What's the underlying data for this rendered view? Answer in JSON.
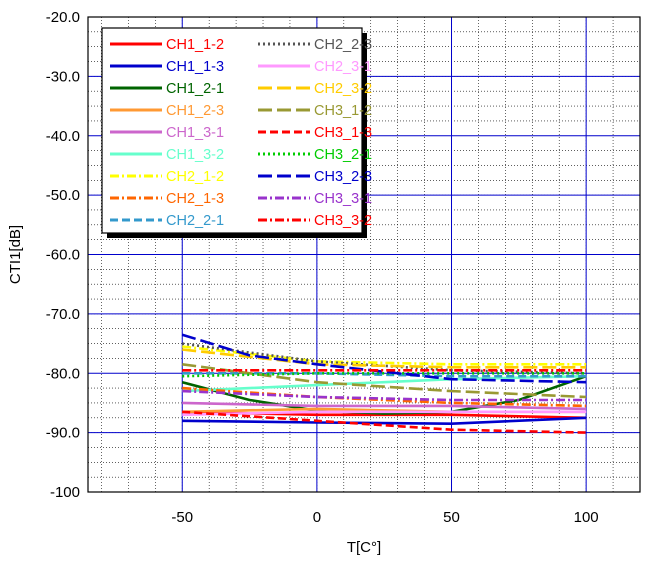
{
  "chart_data": {
    "type": "line",
    "xlabel": "T[C°]",
    "ylabel": "CTI1[dB]",
    "xlim": [
      -85,
      120
    ],
    "ylim": [
      -100,
      -20
    ],
    "x_ticks": [
      -50,
      0,
      50,
      100
    ],
    "x_tick_labels": [
      "-50",
      "0",
      "50",
      "100"
    ],
    "y_ticks": [
      -20,
      -30,
      -40,
      -50,
      -60,
      -70,
      -80,
      -90,
      -100
    ],
    "y_tick_labels": [
      "-20.0",
      "-30.0",
      "-40.0",
      "-50.0",
      "-60.0",
      "-70.0",
      "-80.0",
      "-90.0",
      "-100"
    ],
    "grid": true,
    "legend_position": "top-left",
    "series": [
      {
        "name": "CH1_1-2",
        "color": "#ff0000",
        "dash": "solid",
        "x": [
          -50,
          0,
          50,
          100
        ],
        "y": [
          -86.5,
          -87.0,
          -87.0,
          -87.5
        ]
      },
      {
        "name": "CH1_1-3",
        "color": "#0000cc",
        "dash": "solid",
        "x": [
          -50,
          0,
          50,
          100
        ],
        "y": [
          -88.0,
          -88.3,
          -88.5,
          -87.5
        ]
      },
      {
        "name": "CH1_2-1",
        "color": "#006400",
        "dash": "solid",
        "x": [
          -50,
          -25,
          0,
          25,
          50,
          75,
          100
        ],
        "y": [
          -81.5,
          -84.5,
          -86.3,
          -86.8,
          -86.5,
          -84.5,
          -80.5
        ]
      },
      {
        "name": "CH1_2-3",
        "color": "#ff9933",
        "dash": "solid",
        "x": [
          -50,
          0,
          50,
          100
        ],
        "y": [
          -86.5,
          -86.0,
          -86.5,
          -86.5
        ]
      },
      {
        "name": "CH1_3-1",
        "color": "#cc66cc",
        "dash": "solid",
        "x": [
          -50,
          0,
          50,
          100
        ],
        "y": [
          -85.0,
          -85.5,
          -85.5,
          -86.0
        ]
      },
      {
        "name": "CH1_3-2",
        "color": "#66ffcc",
        "dash": "solid",
        "x": [
          -50,
          0,
          50,
          100
        ],
        "y": [
          -83.0,
          -82.0,
          -81.0,
          -80.5
        ]
      },
      {
        "name": "CH2_1-2",
        "color": "#ffff00",
        "dash": "dashdot",
        "x": [
          -50,
          0,
          50,
          100
        ],
        "y": [
          -75.5,
          -78.0,
          -78.5,
          -78.5
        ]
      },
      {
        "name": "CH2_1-3",
        "color": "#ff6600",
        "dash": "dashdot",
        "x": [
          -50,
          0,
          50,
          100
        ],
        "y": [
          -82.5,
          -84.0,
          -85.0,
          -85.5
        ]
      },
      {
        "name": "CH2_2-1",
        "color": "#3399cc",
        "dash": "dash",
        "x": [
          -50,
          0,
          50,
          100
        ],
        "y": [
          -80.0,
          -80.0,
          -80.5,
          -80.5
        ]
      },
      {
        "name": "CH2_2-3",
        "color": "#555555",
        "dash": "dot",
        "x": [
          -50,
          0,
          50,
          100
        ],
        "y": [
          -75.0,
          -78.0,
          -79.5,
          -80.0
        ]
      },
      {
        "name": "CH2_3-1",
        "color": "#ff99ff",
        "dash": "solid",
        "x": [
          -50,
          0,
          50,
          100
        ],
        "y": [
          -87.0,
          -86.5,
          -86.5,
          -86.5
        ]
      },
      {
        "name": "CH2_3-2",
        "color": "#ffcc00",
        "dash": "longdash",
        "x": [
          -50,
          0,
          50,
          100
        ],
        "y": [
          -76.0,
          -78.5,
          -79.0,
          -79.0
        ]
      },
      {
        "name": "CH3_1-2",
        "color": "#999933",
        "dash": "longdash",
        "x": [
          -50,
          0,
          50,
          100
        ],
        "y": [
          -78.5,
          -81.5,
          -83.0,
          -84.0
        ]
      },
      {
        "name": "CH3_1-3",
        "color": "#ff0000",
        "dash": "dash",
        "x": [
          -50,
          0,
          50,
          100
        ],
        "y": [
          -86.5,
          -88.0,
          -89.5,
          -90.0
        ]
      },
      {
        "name": "CH3_2-1",
        "color": "#00cc00",
        "dash": "dot",
        "x": [
          -50,
          0,
          50,
          100
        ],
        "y": [
          -80.5,
          -80.0,
          -80.0,
          -80.0
        ]
      },
      {
        "name": "CH3_2-3",
        "color": "#0000cc",
        "dash": "longdash",
        "x": [
          -50,
          -25,
          0,
          50,
          100
        ],
        "y": [
          -73.5,
          -77.0,
          -78.5,
          -81.0,
          -81.5
        ]
      },
      {
        "name": "CH3_3-1",
        "color": "#9933cc",
        "dash": "dashdot",
        "x": [
          -50,
          0,
          50,
          100
        ],
        "y": [
          -83.0,
          -84.0,
          -84.5,
          -84.5
        ]
      },
      {
        "name": "CH3_3-2",
        "color": "#ff0000",
        "dash": "dashdot",
        "x": [
          -50,
          0,
          50,
          100
        ],
        "y": [
          -79.5,
          -79.5,
          -79.5,
          -79.5
        ]
      }
    ]
  }
}
